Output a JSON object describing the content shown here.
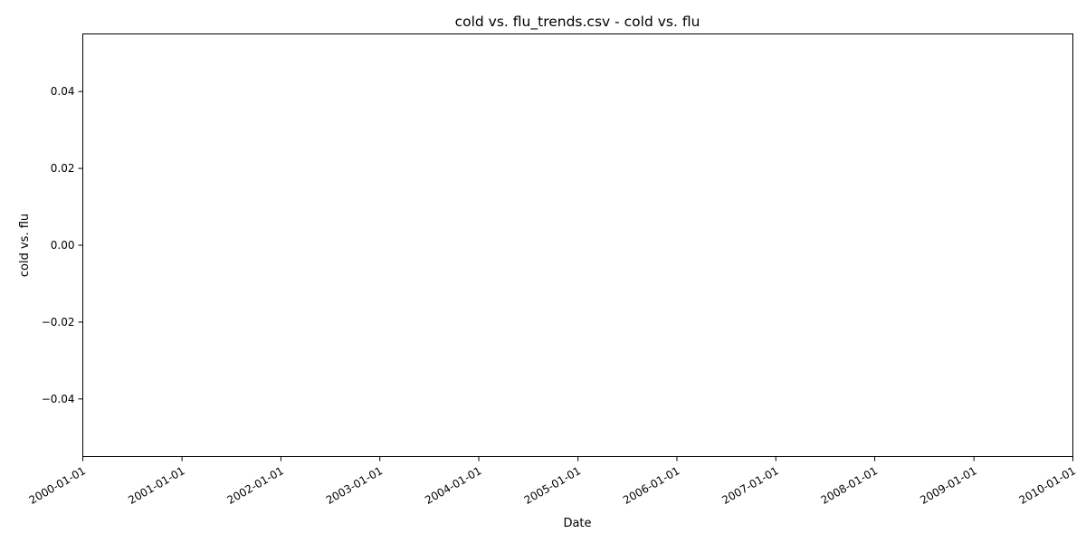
{
  "chart_data": {
    "type": "line",
    "title": "cold vs. flu_trends.csv - cold vs. flu",
    "xlabel": "Date",
    "ylabel": "cold vs. flu",
    "x_ticks": [
      "2000-01-01",
      "2001-01-01",
      "2002-01-01",
      "2003-01-01",
      "2004-01-01",
      "2005-01-01",
      "2006-01-01",
      "2007-01-01",
      "2008-01-01",
      "2009-01-01",
      "2010-01-01"
    ],
    "xlim": [
      "2000-01-01",
      "2010-01-01"
    ],
    "y_ticks": [
      0.04,
      0.02,
      0.0,
      -0.02,
      -0.04
    ],
    "y_tick_labels": [
      "0.04",
      "0.02",
      "0.00",
      "−0.02",
      "−0.04"
    ],
    "ylim": [
      -0.055,
      0.055
    ],
    "grid": false,
    "series": []
  }
}
